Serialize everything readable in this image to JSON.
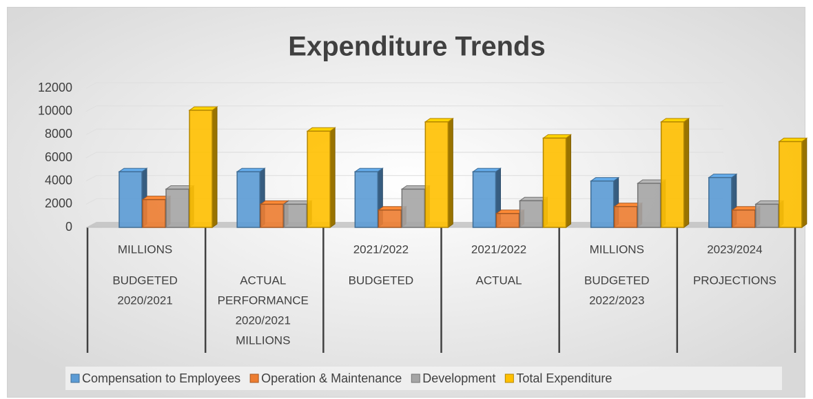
{
  "chart_data": {
    "type": "bar3d",
    "title": "Expenditure Trends",
    "categories": [
      [
        "MILLIONS",
        "BUDGETED",
        "2020/2021"
      ],
      [
        null,
        "ACTUAL",
        "PERFORMANCE",
        "2020/2021",
        "MILLIONS"
      ],
      [
        "2021/2022",
        "BUDGETED"
      ],
      [
        "2021/2022",
        "ACTUAL"
      ],
      [
        "MILLIONS",
        "BUDGETED",
        "2022/2023"
      ],
      [
        "2023/2024",
        "PROJECTIONS"
      ]
    ],
    "series": [
      {
        "name": "Compensation to Employees",
        "color": "#5b9bd5",
        "values": [
          4800,
          4800,
          4800,
          4800,
          4000,
          4300
        ]
      },
      {
        "name": "Operation & Maintenance",
        "color": "#ed7d31",
        "values": [
          2400,
          2000,
          1500,
          1200,
          1800,
          1500
        ]
      },
      {
        "name": "Development",
        "color": "#a5a5a5",
        "values": [
          3300,
          2000,
          3300,
          2300,
          3800,
          2000
        ]
      },
      {
        "name": "Total Expenditure",
        "color": "#ffc000",
        "values": [
          10100,
          8300,
          9100,
          7700,
          9100,
          7400
        ]
      }
    ],
    "ylim": [
      0,
      12000
    ],
    "yticks": [
      0,
      2000,
      4000,
      6000,
      8000,
      10000,
      12000
    ],
    "grid": true,
    "legend": "bottom"
  }
}
